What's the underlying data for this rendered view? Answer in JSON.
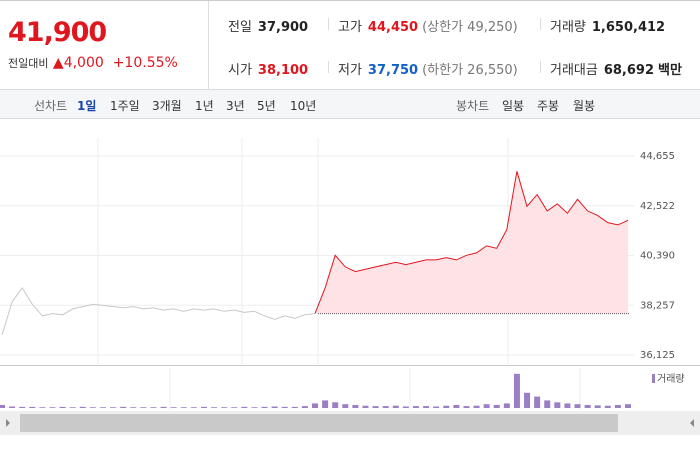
{
  "header": {
    "price": "41,900",
    "change_label": "전일대비",
    "change": "4,000",
    "change_pct": "+10.55%",
    "stats": [
      {
        "label": "전일",
        "value": "37,900"
      },
      {
        "label": "고가",
        "value": "44,450",
        "note": "(상한가 49,250)"
      },
      {
        "label": "거래량",
        "value": "1,650,412"
      },
      {
        "label": "시가",
        "value": "38,100"
      },
      {
        "label": "저가",
        "value": "37,750",
        "note": "(하한가 26,550)"
      },
      {
        "label": "거래대금",
        "value": "68,692",
        "unit": "백만"
      }
    ]
  },
  "toolbar": {
    "line_label": "선차트",
    "line_periods": [
      "1일",
      "1주일",
      "3개월",
      "1년",
      "3년",
      "5년",
      "10년"
    ],
    "selected": "1일",
    "candle_label": "봉차트",
    "candle_periods": [
      "일봉",
      "주봉",
      "월봉"
    ]
  },
  "chart_data": {
    "type": "line",
    "ylim": [
      36125,
      44655
    ],
    "yticks": [
      {
        "value": 44655,
        "label": "44,655"
      },
      {
        "value": 42522,
        "label": "42,522"
      },
      {
        "value": 40390,
        "label": "40,390"
      },
      {
        "value": 38257,
        "label": "38,257"
      },
      {
        "value": 36125,
        "label": "36,125"
      }
    ],
    "reference_line": 37900,
    "series": [
      {
        "color": "#c8c8c8",
        "values": [
          36983,
          38400,
          39000,
          38300,
          37800,
          37900,
          37850,
          38100,
          38200,
          38300,
          38250,
          38200,
          38150,
          38200,
          38100,
          38150,
          38050,
          38100,
          38000,
          38100,
          38050,
          38100,
          38000,
          38050,
          37950,
          38000,
          37800,
          37650,
          37800,
          37700,
          37850,
          37900,
          null,
          null,
          null,
          null,
          null,
          null,
          null,
          null,
          null,
          null,
          null,
          null,
          null,
          null,
          null,
          null,
          null,
          null,
          null,
          null,
          null,
          null,
          null,
          null,
          null,
          null,
          null,
          null,
          null,
          null,
          null
        ]
      },
      {
        "color": "#e0161f",
        "fill": "#fde3e5",
        "values": [
          null,
          null,
          null,
          null,
          null,
          null,
          null,
          null,
          null,
          null,
          null,
          null,
          null,
          null,
          null,
          null,
          null,
          null,
          null,
          null,
          null,
          null,
          null,
          null,
          null,
          null,
          null,
          null,
          null,
          null,
          null,
          37900,
          39000,
          40400,
          39900,
          39700,
          39800,
          39900,
          40000,
          40100,
          40000,
          40100,
          40200,
          40200,
          40300,
          40200,
          40400,
          40500,
          40800,
          40700,
          41500,
          44000,
          42500,
          43000,
          42300,
          42600,
          42200,
          42800,
          42300,
          42100,
          41800,
          41700,
          41900
        ]
      }
    ],
    "volume": {
      "name": "거래량",
      "color": "#9b7fc4",
      "ylim": [
        0,
        100
      ],
      "values": [
        8,
        4,
        3,
        3,
        2,
        2,
        3,
        2,
        3,
        2,
        2,
        2,
        3,
        2,
        2,
        2,
        3,
        2,
        2,
        2,
        3,
        2,
        2,
        2,
        3,
        2,
        3,
        4,
        3,
        3,
        5,
        12,
        20,
        15,
        10,
        8,
        6,
        5,
        5,
        6,
        4,
        5,
        5,
        4,
        6,
        8,
        5,
        6,
        10,
        8,
        12,
        90,
        40,
        30,
        20,
        15,
        12,
        10,
        8,
        7,
        6,
        8,
        10
      ]
    }
  }
}
